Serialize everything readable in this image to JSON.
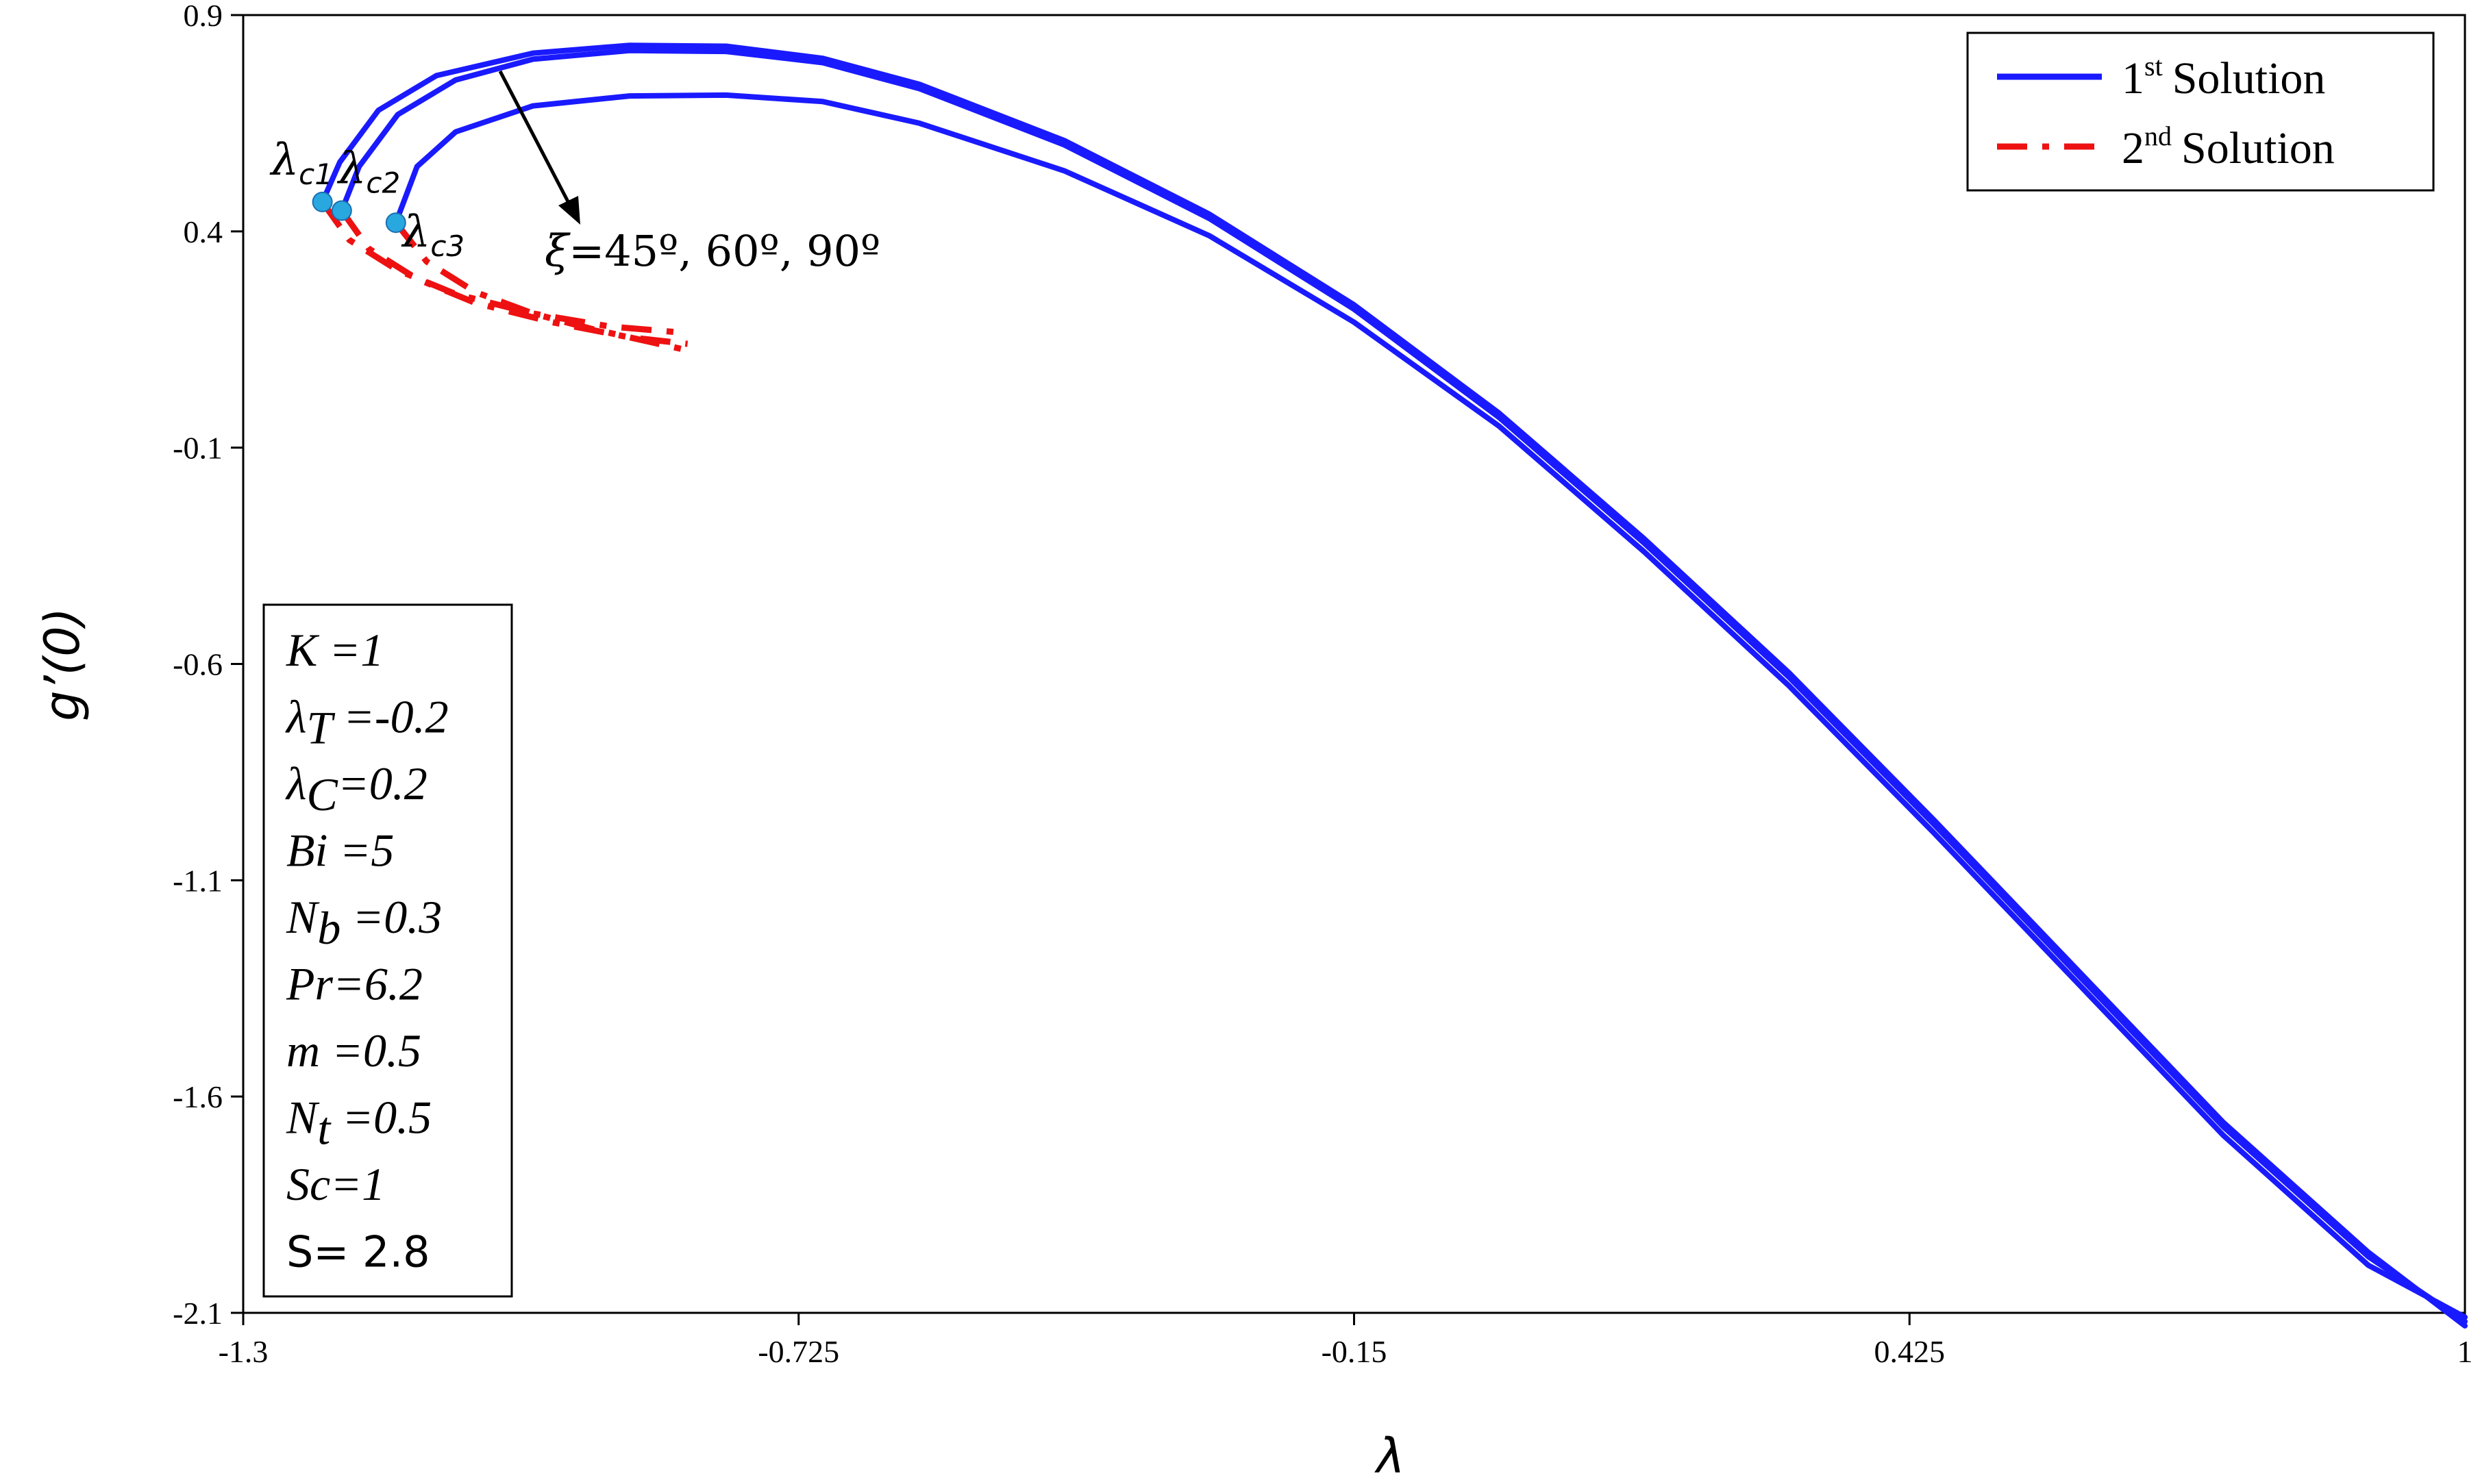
{
  "chart_data": {
    "type": "line",
    "xlabel": "λ",
    "ylabel": "g’(0)",
    "xlim": [
      -1.3,
      1.0
    ],
    "ylim": [
      -2.1,
      0.9
    ],
    "xticks": [
      "-1.3",
      "-0.725",
      "-0.15",
      "0.425",
      "1"
    ],
    "yticks": [
      "0.9",
      "0.4",
      "-0.1",
      "-0.6",
      "-1.1",
      "-1.6",
      "-2.1"
    ],
    "grid": false,
    "legend_position": "top-right",
    "legend": [
      {
        "sup_prefix": "1",
        "sup": "st",
        "text": "Solution",
        "style": "solid",
        "color": "#1a1aff"
      },
      {
        "sup_prefix": "2",
        "sup": "nd",
        "text": "Solution",
        "style": "dash-dot",
        "color": "#ee1111"
      }
    ],
    "first_solution": [
      {
        "name": "ξ=45º",
        "color": "#1a1aff",
        "x": [
          -1.218,
          -1.2,
          -1.16,
          -1.1,
          -1.0,
          -0.9,
          -0.8,
          -0.7,
          -0.6,
          -0.45,
          -0.3,
          -0.15,
          0.0,
          0.15,
          0.3,
          0.45,
          0.6,
          0.75,
          0.9,
          1.0
        ],
        "y": [
          0.468,
          0.56,
          0.68,
          0.76,
          0.812,
          0.83,
          0.828,
          0.8,
          0.74,
          0.61,
          0.44,
          0.23,
          -0.02,
          -0.31,
          -0.62,
          -0.96,
          -1.31,
          -1.66,
          -1.96,
          -2.13
        ]
      },
      {
        "name": "ξ=60º",
        "color": "#1a1aff",
        "x": [
          -1.198,
          -1.18,
          -1.14,
          -1.08,
          -1.0,
          -0.9,
          -0.8,
          -0.7,
          -0.6,
          -0.45,
          -0.3,
          -0.15,
          0.0,
          0.15,
          0.3,
          0.45,
          0.6,
          0.75,
          0.9,
          1.0
        ],
        "y": [
          0.448,
          0.55,
          0.67,
          0.75,
          0.798,
          0.818,
          0.816,
          0.79,
          0.73,
          0.6,
          0.43,
          0.22,
          -0.03,
          -0.32,
          -0.63,
          -0.97,
          -1.32,
          -1.67,
          -1.97,
          -2.12
        ]
      },
      {
        "name": "ξ=90º",
        "color": "#1a1aff",
        "x": [
          -1.142,
          -1.12,
          -1.08,
          -1.0,
          -0.9,
          -0.8,
          -0.7,
          -0.6,
          -0.45,
          -0.3,
          -0.15,
          0.0,
          0.15,
          0.3,
          0.45,
          0.6,
          0.75,
          0.9,
          1.0
        ],
        "y": [
          0.42,
          0.55,
          0.63,
          0.69,
          0.713,
          0.715,
          0.7,
          0.65,
          0.54,
          0.39,
          0.19,
          -0.05,
          -0.34,
          -0.65,
          -0.99,
          -1.34,
          -1.69,
          -1.99,
          -2.11
        ]
      }
    ],
    "second_solution": [
      {
        "name": "ξ=45º",
        "color": "#ee1111",
        "x": [
          -1.218,
          -1.19,
          -1.14,
          -1.08,
          -1.0,
          -0.92,
          -0.84
        ],
        "y": [
          0.468,
          0.38,
          0.31,
          0.255,
          0.21,
          0.18,
          0.165
        ]
      },
      {
        "name": "ξ=60º",
        "color": "#ee1111",
        "x": [
          -1.198,
          -1.17,
          -1.12,
          -1.06,
          -0.98,
          -0.9,
          -0.84
        ],
        "y": [
          0.448,
          0.36,
          0.29,
          0.235,
          0.19,
          0.155,
          0.14
        ]
      },
      {
        "name": "ξ=90º",
        "color": "#ee1111",
        "x": [
          -1.142,
          -1.11,
          -1.06,
          -1.0,
          -0.94,
          -0.88,
          -0.84
        ],
        "y": [
          0.42,
          0.33,
          0.26,
          0.21,
          0.175,
          0.145,
          0.125
        ]
      }
    ],
    "critical_points": [
      {
        "label": "λ",
        "sub": "c1",
        "x": -1.218,
        "y": 0.468,
        "color": "#29a8e0"
      },
      {
        "label": "λ",
        "sub": "c2",
        "x": -1.198,
        "y": 0.448,
        "color": "#29a8e0"
      },
      {
        "label": "λ",
        "sub": "c3",
        "x": -1.142,
        "y": 0.42,
        "color": "#29a8e0"
      }
    ],
    "arrow_annotation": {
      "sym": "ξ",
      "text": "=45º, 60º, 90º"
    },
    "parameter_box": [
      {
        "sym": "K",
        "sub": "",
        "value": " =1"
      },
      {
        "sym": "λ",
        "sub": "T",
        "value": " =-0.2"
      },
      {
        "sym": "λ",
        "sub": "C",
        "value": "=0.2"
      },
      {
        "sym": "Bi",
        "sub": "",
        "value": " =5"
      },
      {
        "sym": "N",
        "sub": "b",
        "value": " =0.3"
      },
      {
        "sym": "Pr",
        "sub": "",
        "value": "=6.2"
      },
      {
        "sym": "m",
        "sub": "",
        "value": " =0.5"
      },
      {
        "sym": "N",
        "sub": "t",
        "value": " =0.5"
      },
      {
        "sym": "Sc",
        "sub": "",
        "value": "=1"
      },
      {
        "sym": "S",
        "sub": "",
        "value": "= 2.8",
        "plain": true
      }
    ]
  }
}
